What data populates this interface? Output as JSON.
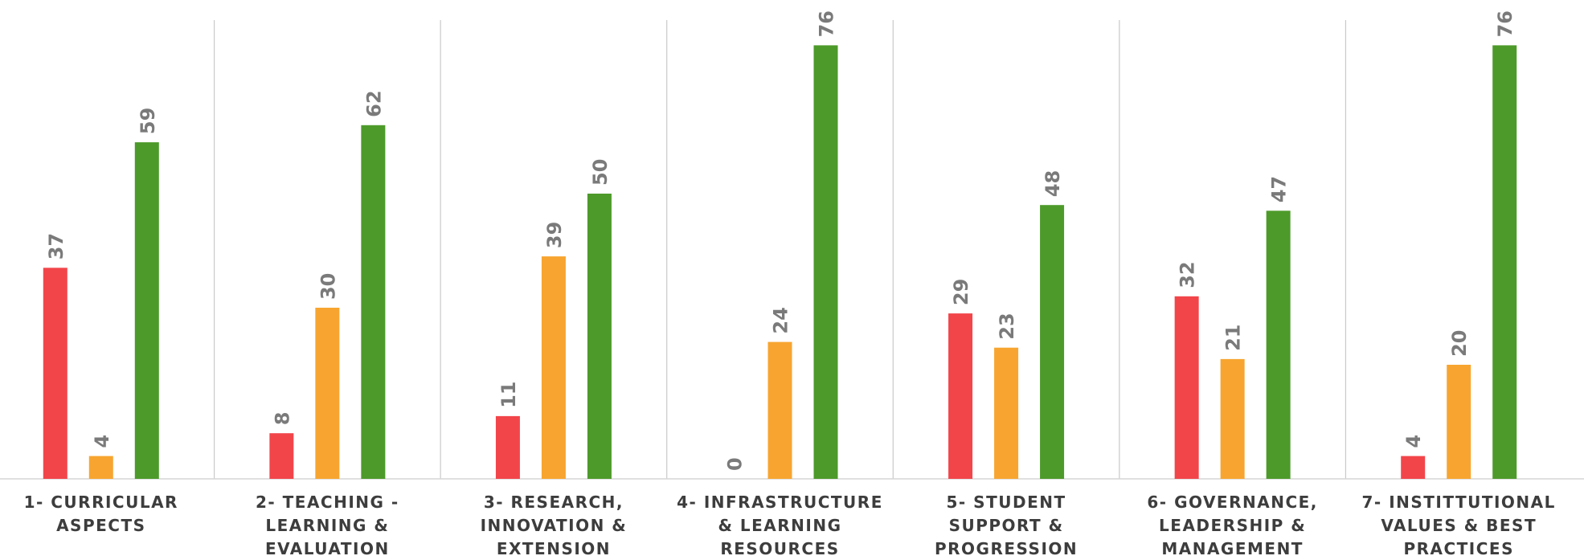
{
  "chart_data": {
    "type": "bar",
    "categories": [
      [
        "1- CURRICULAR",
        "ASPECTS"
      ],
      [
        "2- TEACHING -",
        "LEARNING &",
        "EVALUATION"
      ],
      [
        "3- RESEARCH,",
        "INNOVATION &",
        "EXTENSION"
      ],
      [
        "4- INFRASTRUCTURE",
        "& LEARNING",
        "RESOURCES"
      ],
      [
        "5- STUDENT",
        "SUPPORT &",
        "PROGRESSION"
      ],
      [
        "6- GOVERNANCE,",
        "LEADERSHIP &",
        "MANAGEMENT"
      ],
      [
        "7- INSTITTUTIONAL",
        "VALUES & BEST",
        "PRACTICES"
      ]
    ],
    "series": [
      {
        "values": [
          37,
          8,
          11,
          0,
          29,
          32,
          4
        ],
        "color": "#f2454a"
      },
      {
        "values": [
          4,
          30,
          39,
          24,
          23,
          21,
          20
        ],
        "color": "#f7a530"
      },
      {
        "values": [
          59,
          62,
          50,
          76,
          48,
          47,
          76
        ],
        "color": "#4d9a2a"
      }
    ],
    "ylim": [
      0,
      80
    ],
    "grid": false,
    "legend": "none",
    "data_labels": "rotated vertical above bars"
  }
}
